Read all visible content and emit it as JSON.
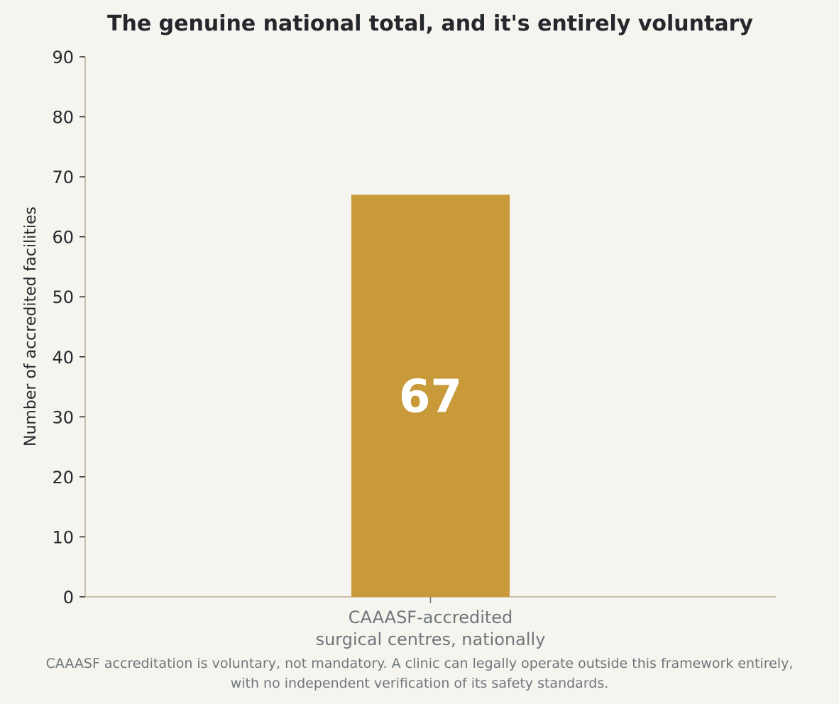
{
  "chart_data": {
    "type": "bar",
    "title": "The genuine national total, and it's entirely voluntary",
    "ylabel": "Number of accredited facilities",
    "xlabel": "",
    "categories": [
      [
        "CAAASF-accredited",
        "surgical centres, nationally"
      ]
    ],
    "values": [
      67
    ],
    "data_labels": [
      "67"
    ],
    "ylim": [
      0,
      90
    ],
    "yticks": [
      0,
      10,
      20,
      30,
      40,
      50,
      60,
      70,
      80,
      90
    ],
    "grid": false,
    "legend": "none",
    "colors": {
      "bar": "#c89a39",
      "axis": "#cbbfac",
      "text": "#24272b",
      "muted": "#6f767b",
      "background": "#f5f4ef"
    }
  },
  "footnote": [
    "CAAASF accreditation is voluntary, not mandatory. A clinic can legally operate outside this framework entirely,",
    "with no independent verification of its safety standards."
  ]
}
